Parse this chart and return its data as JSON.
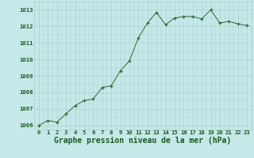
{
  "x": [
    0,
    1,
    2,
    3,
    4,
    5,
    6,
    7,
    8,
    9,
    10,
    11,
    12,
    13,
    14,
    15,
    16,
    17,
    18,
    19,
    20,
    21,
    22,
    23
  ],
  "y": [
    1006.0,
    1006.3,
    1006.2,
    1006.7,
    1007.2,
    1007.5,
    1007.6,
    1008.3,
    1008.4,
    1009.3,
    1009.9,
    1011.3,
    1012.2,
    1012.85,
    1012.1,
    1012.5,
    1012.6,
    1012.6,
    1012.45,
    1013.0,
    1012.2,
    1012.3,
    1012.15,
    1012.05
  ],
  "line_color": "#2d6a2d",
  "marker_color": "#2d6a2d",
  "bg_color": "#c5e8e8",
  "grid_color": "#b0cfcf",
  "xlabel": "Graphe pression niveau de la mer (hPa)",
  "ylim_min": 1005.75,
  "ylim_max": 1013.5,
  "yticks": [
    1006,
    1007,
    1008,
    1009,
    1010,
    1011,
    1012,
    1013
  ],
  "xticks": [
    0,
    1,
    2,
    3,
    4,
    5,
    6,
    7,
    8,
    9,
    10,
    11,
    12,
    13,
    14,
    15,
    16,
    17,
    18,
    19,
    20,
    21,
    22,
    23
  ],
  "tick_label_fontsize": 5.2,
  "xlabel_fontsize": 7.0,
  "axis_label_color": "#1a5c1a"
}
